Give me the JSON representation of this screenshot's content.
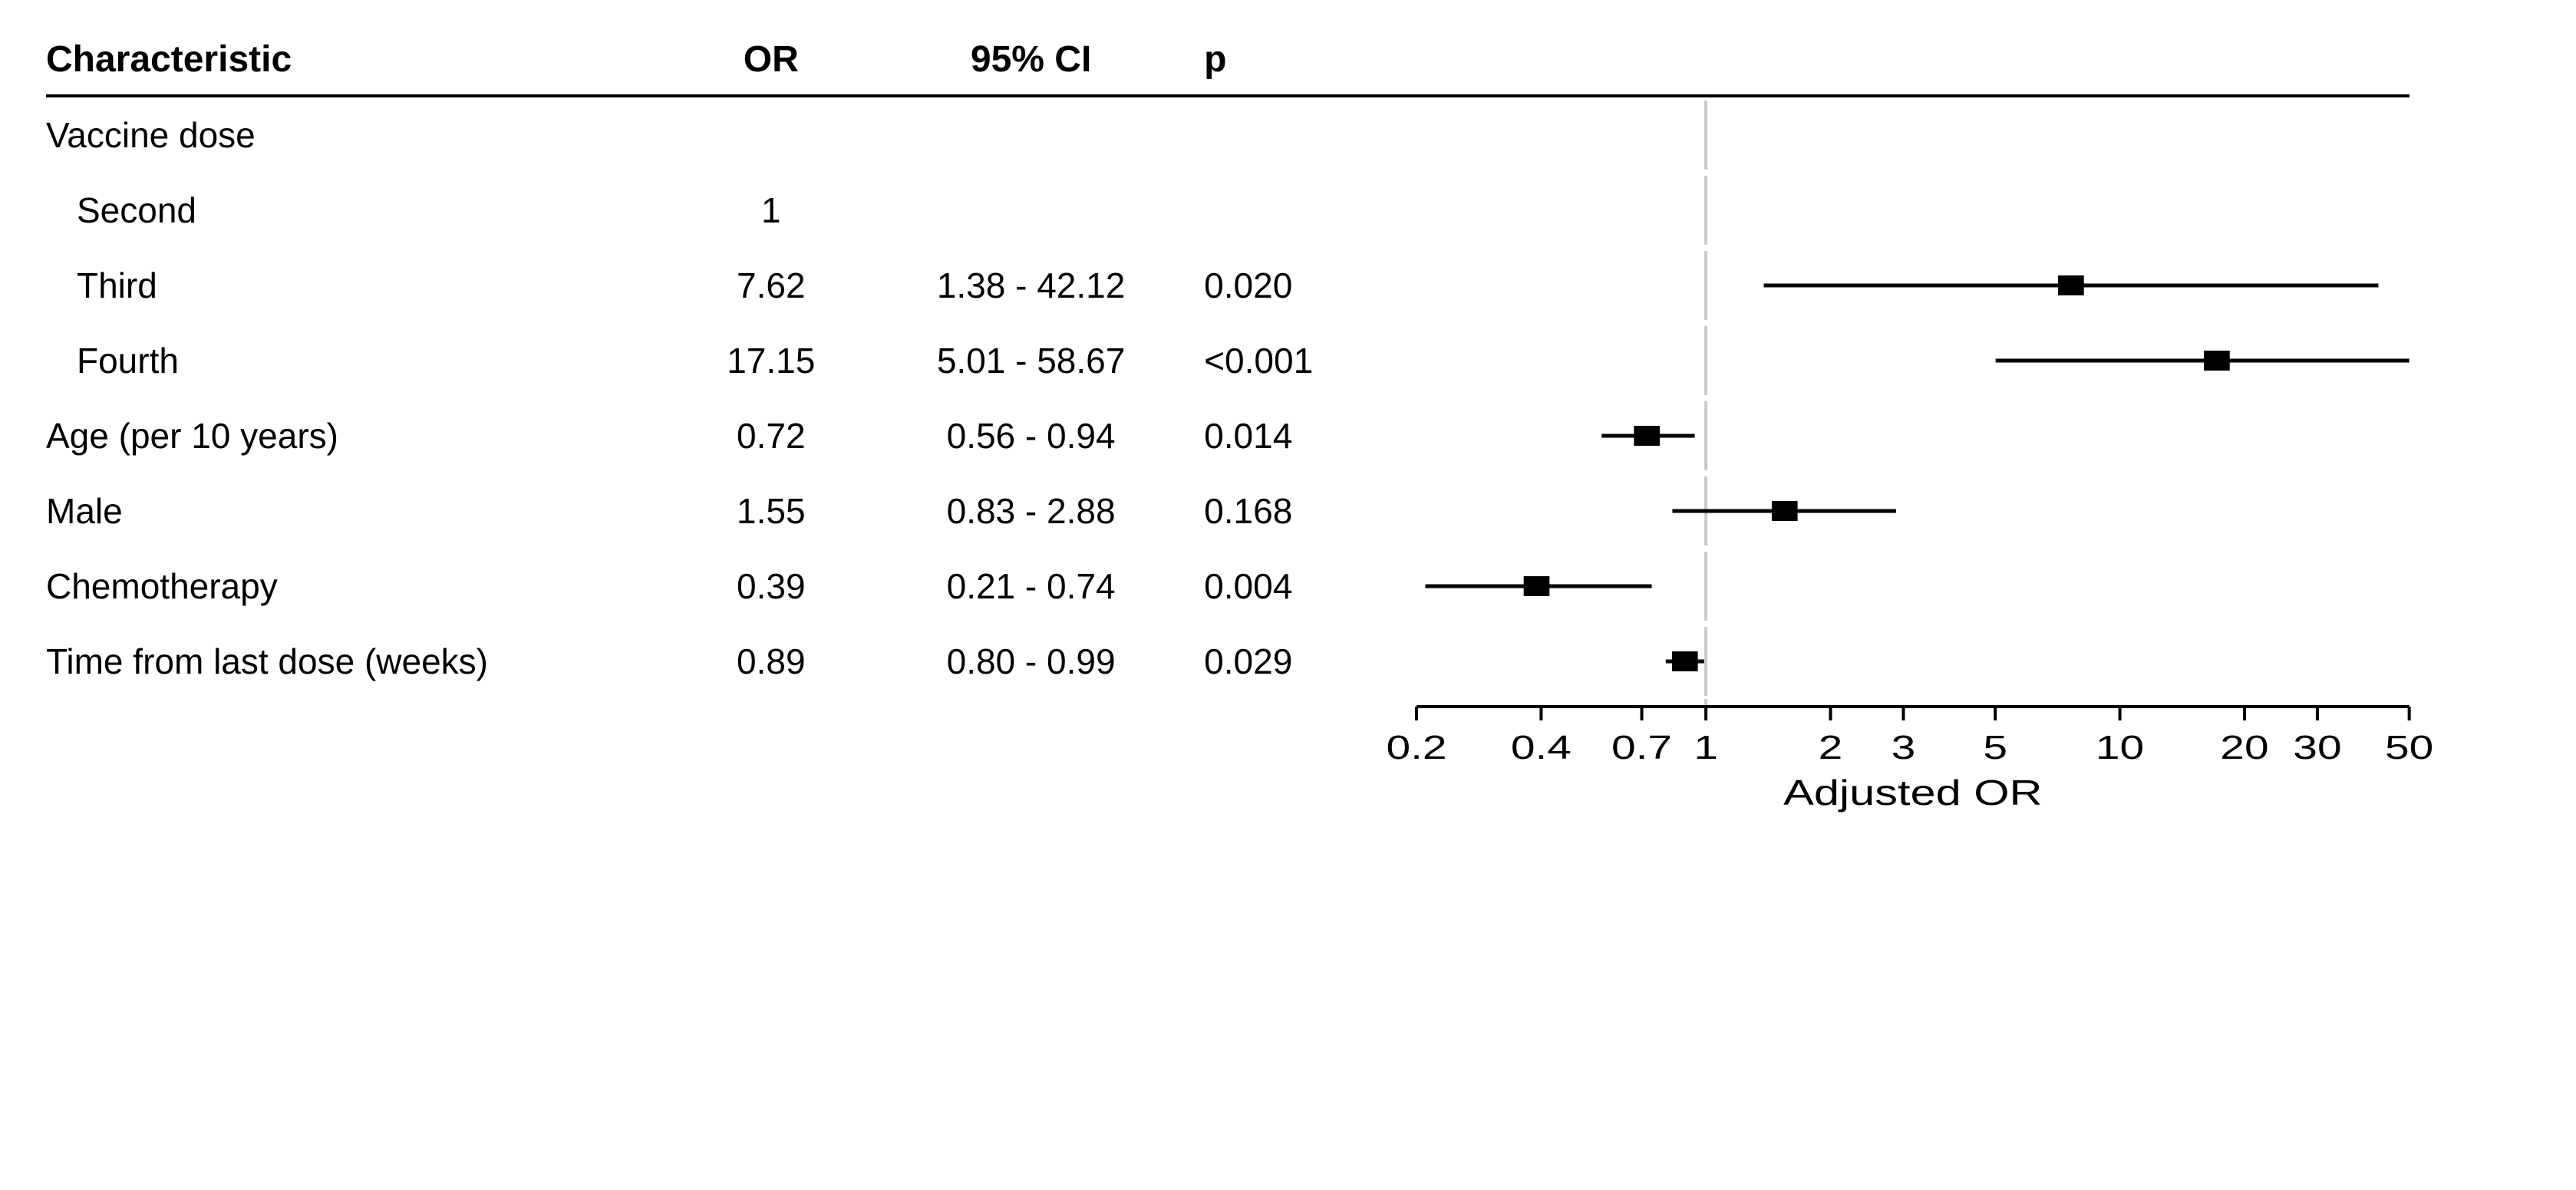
{
  "columns": {
    "characteristic": "Characteristic",
    "or": "OR",
    "ci": "95% CI",
    "p": "p"
  },
  "axis": {
    "title": "Adjusted OR",
    "scale": "log",
    "domain_min": 0.2,
    "domain_max": 50,
    "ticks": [
      0.2,
      0.4,
      0.7,
      1,
      2,
      3,
      5,
      10,
      20,
      30,
      50
    ],
    "ref_value": 1,
    "ref_color": "#c9c9c9",
    "line_color": "#000000",
    "tick_len": 18
  },
  "style": {
    "font_family": "Arial",
    "header_fontsize": 48,
    "body_fontsize": 46,
    "tick_fontsize": 44,
    "axis_title_fontsize": 46,
    "marker_size": 26,
    "whisker_width": 5,
    "background": "#ffffff",
    "text_color": "#000000",
    "col_widths_pct": [
      27,
      8,
      14,
      9,
      42
    ]
  },
  "rows": [
    {
      "type": "group",
      "label": "Vaccine dose"
    },
    {
      "type": "data",
      "indent": true,
      "label": "Second",
      "or": "1",
      "ci": "",
      "p": "",
      "point": null,
      "low": null,
      "high": null,
      "is_ref": true
    },
    {
      "type": "data",
      "indent": true,
      "label": "Third",
      "or": "7.62",
      "ci": "1.38 - 42.12",
      "p": "0.020",
      "point": 7.62,
      "low": 1.38,
      "high": 42.12
    },
    {
      "type": "data",
      "indent": true,
      "label": "Fourth",
      "or": "17.15",
      "ci": "5.01 - 58.67",
      "p": "<0.001",
      "point": 17.15,
      "low": 5.01,
      "high": 58.67
    },
    {
      "type": "data",
      "indent": false,
      "label": "Age (per 10 years)",
      "or": "0.72",
      "ci": "0.56 - 0.94",
      "p": "0.014",
      "point": 0.72,
      "low": 0.56,
      "high": 0.94
    },
    {
      "type": "data",
      "indent": false,
      "label": "Male",
      "or": "1.55",
      "ci": "0.83 - 2.88",
      "p": "0.168",
      "point": 1.55,
      "low": 0.83,
      "high": 2.88
    },
    {
      "type": "data",
      "indent": false,
      "label": "Chemotherapy",
      "or": "0.39",
      "ci": "0.21 - 0.74",
      "p": "0.004",
      "point": 0.39,
      "low": 0.21,
      "high": 0.74
    },
    {
      "type": "data",
      "indent": false,
      "label": "Time from last dose (weeks)",
      "or": "0.89",
      "ci": "0.80 - 0.99",
      "p": "0.029",
      "point": 0.89,
      "low": 0.8,
      "high": 0.99
    }
  ]
}
